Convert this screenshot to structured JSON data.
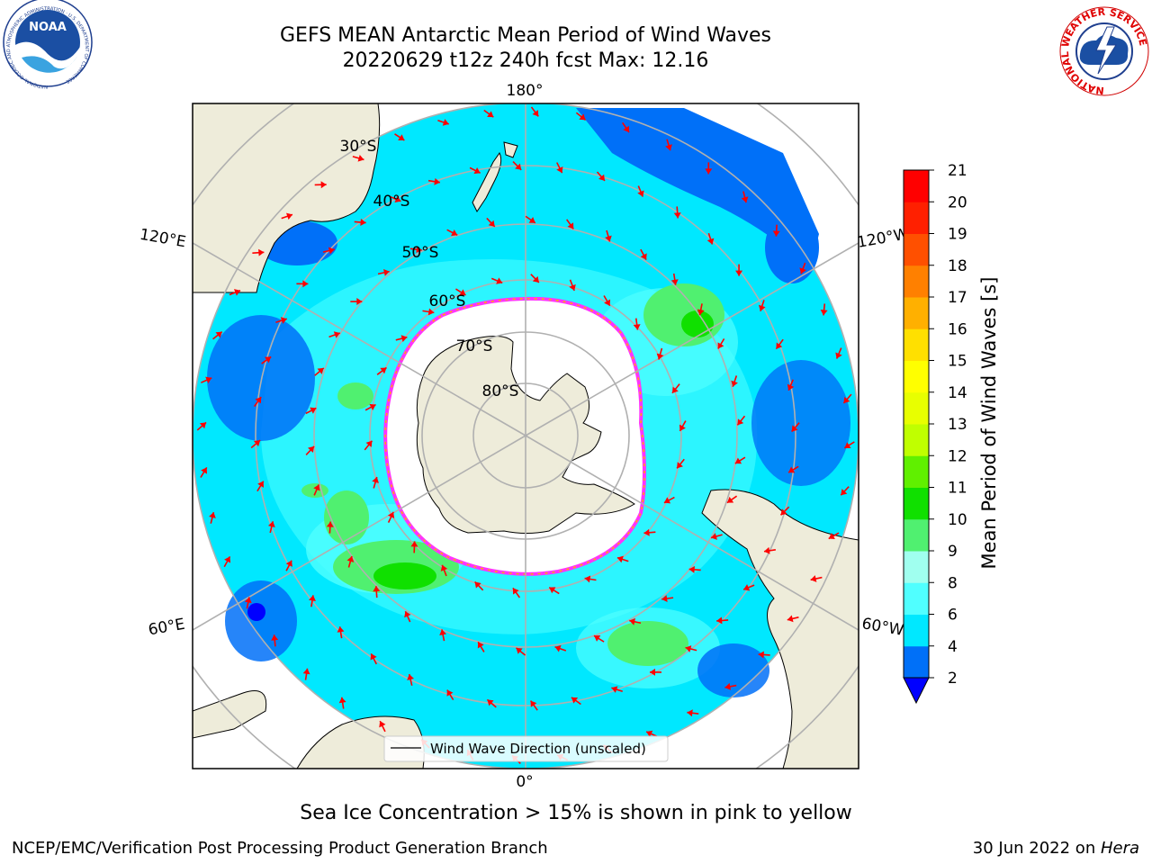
{
  "header": {
    "title_line1": "GEFS MEAN Antarctic Mean Period of Wind Waves",
    "title_line2": "20220629 t12z 240h fcst   Max: 12.16"
  },
  "logos": {
    "noara_text": "NOAA",
    "noaa_ring_text": "NATIONAL OCEANIC AND ATMOSPHERIC ADMINISTRATION · U.S. DEPARTMENT OF COMMERCE",
    "nws_ring_text": "NATIONAL WEATHER SERVICE"
  },
  "map": {
    "projection": "south-polar-stereographic",
    "longitude_labels": {
      "top": "180°",
      "upper_left": "120°E",
      "lower_left": "60°E",
      "upper_right": "120°W",
      "lower_right": "60°W",
      "bottom": "0°"
    },
    "latitude_labels": [
      "30°S",
      "40°S",
      "50°S",
      "60°S",
      "70°S",
      "80°S"
    ],
    "legend_label": "Wind Wave Direction (unscaled)",
    "colors": {
      "land": "#eeecda",
      "sea_ice": "#ffffff",
      "ice_edge": "#ff33ff",
      "arrows": "#ff0000",
      "grid": "#b0b0b0"
    }
  },
  "colorbar": {
    "label": "Mean Period of Wind Waves [s]",
    "ticks": [
      "2",
      "4",
      "6",
      "8",
      "9",
      "10",
      "11",
      "12",
      "13",
      "14",
      "15",
      "16",
      "17",
      "18",
      "19",
      "20",
      "21"
    ],
    "colors": [
      "#0070f8",
      "#00e8ff",
      "#50ffff",
      "#a0ffef",
      "#50f070",
      "#10e000",
      "#60f000",
      "#c0ff00",
      "#e8ff00",
      "#ffff00",
      "#ffe000",
      "#ffb000",
      "#ff8000",
      "#ff5000",
      "#ff2000",
      "#ff0000"
    ],
    "under_color": "#0000ff"
  },
  "footer": {
    "note": "Sea Ice Concentration > 15% is shown in pink to yellow",
    "credit_left": "NCEP/EMC/Verification Post Processing Product Generation Branch",
    "credit_right_date": "30 Jun 2022 on ",
    "credit_right_host": "Hera"
  }
}
